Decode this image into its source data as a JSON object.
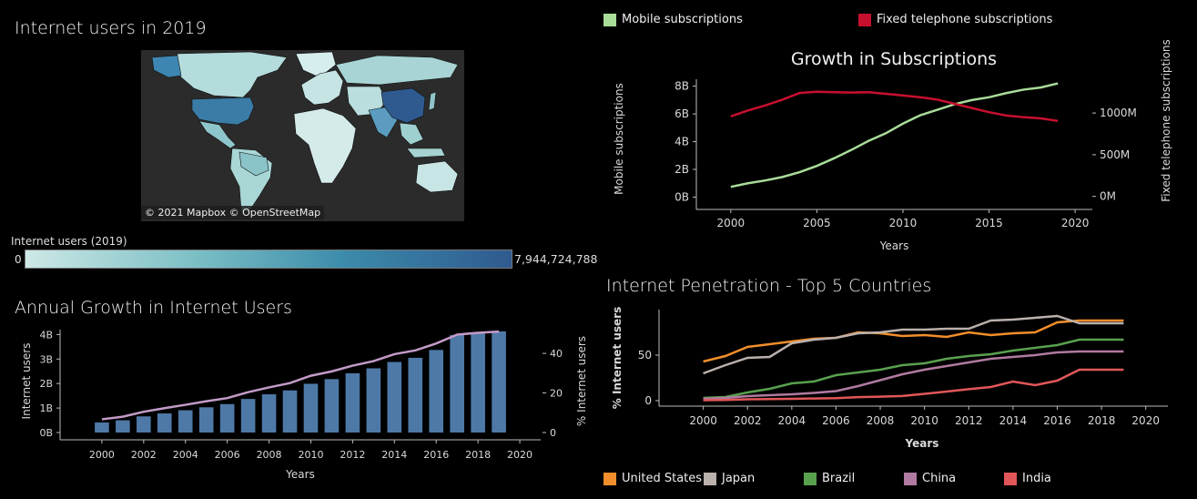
{
  "map_panel": {
    "title": "Internet users in 2019",
    "attribution": "© 2021 Mapbox © OpenStreetMap",
    "scale_title": "Internet users (2019)",
    "scale_min": "0",
    "scale_max": "7,944,724,788",
    "colors": {
      "ocean": "#2b2b2b",
      "low": "#cde8e6",
      "high": "#2f5a8f",
      "border": "#111111"
    }
  },
  "annual_panel": {
    "title": "Annual Growth in Internet Users"
  },
  "subs_panel": {
    "legend": [
      {
        "label": "Mobile subscriptions",
        "color": "#a8dc98"
      },
      {
        "label": "Fixed telephone subscriptions",
        "color": "#c8102e"
      }
    ]
  },
  "penetration_panel": {
    "title": "Internet Penetration - Top 5 Countries",
    "legend": [
      {
        "label": "United States",
        "color": "#f28e2b"
      },
      {
        "label": "Japan",
        "color": "#bab0ac"
      },
      {
        "label": "Brazil",
        "color": "#59a14f"
      },
      {
        "label": "China",
        "color": "#b07aa1"
      },
      {
        "label": "India",
        "color": "#e15759"
      }
    ]
  },
  "chart_data": [
    {
      "type": "bar",
      "title": "Annual Growth in Internet Users",
      "xlabel": "Years",
      "ylabel": "Internet users",
      "y2label": "% Internet users",
      "x": [
        2000,
        2001,
        2002,
        2003,
        2004,
        2005,
        2006,
        2007,
        2008,
        2009,
        2010,
        2011,
        2012,
        2013,
        2014,
        2015,
        2016,
        2017,
        2018,
        2019
      ],
      "xlim": [
        1998,
        2021
      ],
      "ylim": [
        0,
        4.2
      ],
      "yticks": [
        0,
        1,
        2,
        3,
        4
      ],
      "ytick_labels": [
        "0B",
        "1B",
        "2B",
        "3B",
        "4B"
      ],
      "y2lim": [
        0,
        52
      ],
      "y2ticks": [
        0,
        20,
        40
      ],
      "y2tick_labels": [
        "0",
        "20",
        "40"
      ],
      "xticks": [
        2000,
        2002,
        2004,
        2006,
        2008,
        2010,
        2012,
        2014,
        2016,
        2018,
        2020
      ],
      "series": [
        {
          "name": "Internet users",
          "kind": "bar",
          "color": "#4e79a7",
          "values": [
            0.41,
            0.5,
            0.66,
            0.78,
            0.91,
            1.03,
            1.16,
            1.37,
            1.56,
            1.72,
            1.99,
            2.18,
            2.42,
            2.62,
            2.88,
            3.05,
            3.37,
            3.98,
            4.05,
            4.13
          ]
        },
        {
          "name": "% Internet users",
          "kind": "line",
          "color": "#c39bc8",
          "values": [
            6.7,
            8.0,
            10.5,
            12.3,
            14.0,
            15.8,
            17.4,
            20.4,
            22.8,
            25.0,
            28.7,
            30.9,
            33.8,
            36.1,
            39.6,
            41.5,
            45.0,
            49.5,
            50.4,
            51.0
          ]
        }
      ]
    },
    {
      "type": "line",
      "title": "Growth in Subscriptions",
      "xlabel": "Years",
      "ylabel": "Mobile subscriptions",
      "y2label": "Fixed telephone subscriptions",
      "x": [
        2000,
        2001,
        2002,
        2003,
        2004,
        2005,
        2006,
        2007,
        2008,
        2009,
        2010,
        2011,
        2012,
        2013,
        2014,
        2015,
        2016,
        2017,
        2018,
        2019
      ],
      "xlim": [
        1998,
        2021
      ],
      "ylim": [
        -0.1,
        8.5
      ],
      "yticks": [
        0,
        2,
        4,
        6,
        8
      ],
      "ytick_labels": [
        "0B",
        "2B",
        "4B",
        "6B",
        "8B"
      ],
      "y2lim": [
        -25,
        1405
      ],
      "y2ticks": [
        0,
        500,
        1000
      ],
      "y2tick_labels": [
        "0M",
        "500M",
        "1000M"
      ],
      "xticks": [
        2000,
        2005,
        2010,
        2015,
        2020
      ],
      "series": [
        {
          "name": "Mobile subscriptions",
          "axis": "left",
          "color": "#a8dc98",
          "values": [
            0.74,
            1.0,
            1.2,
            1.45,
            1.8,
            2.25,
            2.8,
            3.4,
            4.05,
            4.6,
            5.3,
            5.9,
            6.3,
            6.7,
            7.0,
            7.2,
            7.5,
            7.75,
            7.9,
            8.2
          ]
        },
        {
          "name": "Fixed telephone subscriptions",
          "axis": "right",
          "color": "#c8102e",
          "values": [
            960,
            1030,
            1090,
            1160,
            1240,
            1255,
            1250,
            1245,
            1250,
            1230,
            1210,
            1190,
            1160,
            1110,
            1060,
            1010,
            970,
            950,
            935,
            905
          ]
        }
      ]
    },
    {
      "type": "line",
      "title": "Internet Penetration - Top 5 Countries",
      "xlabel": "Years",
      "ylabel": "% Internet users",
      "x": [
        2000,
        2001,
        2002,
        2003,
        2004,
        2005,
        2006,
        2007,
        2008,
        2009,
        2010,
        2011,
        2012,
        2013,
        2014,
        2015,
        2016,
        2017,
        2018,
        2019
      ],
      "xlim": [
        1998,
        2021
      ],
      "ylim": [
        -6,
        100
      ],
      "yticks": [
        0,
        50
      ],
      "ytick_labels": [
        "0",
        "50"
      ],
      "xticks": [
        2000,
        2002,
        2004,
        2006,
        2008,
        2010,
        2012,
        2014,
        2016,
        2018,
        2020
      ],
      "series": [
        {
          "name": "United States",
          "color": "#f28e2b",
          "values": [
            43,
            49,
            59,
            62,
            65,
            68,
            69,
            75,
            74,
            71,
            72,
            70,
            75,
            72,
            74,
            75,
            86,
            88,
            88,
            88
          ]
        },
        {
          "name": "Japan",
          "color": "#bab0ac",
          "values": [
            30,
            39,
            47,
            48,
            63,
            67,
            69,
            74,
            75,
            78,
            78,
            79,
            79,
            88,
            89,
            91,
            93,
            85,
            85,
            85
          ]
        },
        {
          "name": "Brazil",
          "color": "#59a14f",
          "values": [
            3,
            4,
            9,
            13,
            19,
            21,
            28,
            31,
            34,
            39,
            41,
            46,
            49,
            51,
            55,
            58,
            61,
            67,
            67,
            67
          ]
        },
        {
          "name": "China",
          "color": "#b07aa1",
          "values": [
            2,
            3,
            5,
            6,
            7,
            8.5,
            10.5,
            16,
            22.5,
            29,
            34,
            38,
            42,
            46,
            48,
            50,
            53,
            54,
            54,
            54
          ]
        },
        {
          "name": "India",
          "color": "#e15759",
          "values": [
            0.5,
            0.7,
            1.5,
            1.7,
            2,
            2.4,
            2.8,
            3.9,
            4.4,
            5.1,
            7.5,
            10,
            12.6,
            15,
            21,
            17,
            22,
            34,
            34,
            34
          ]
        }
      ]
    }
  ]
}
